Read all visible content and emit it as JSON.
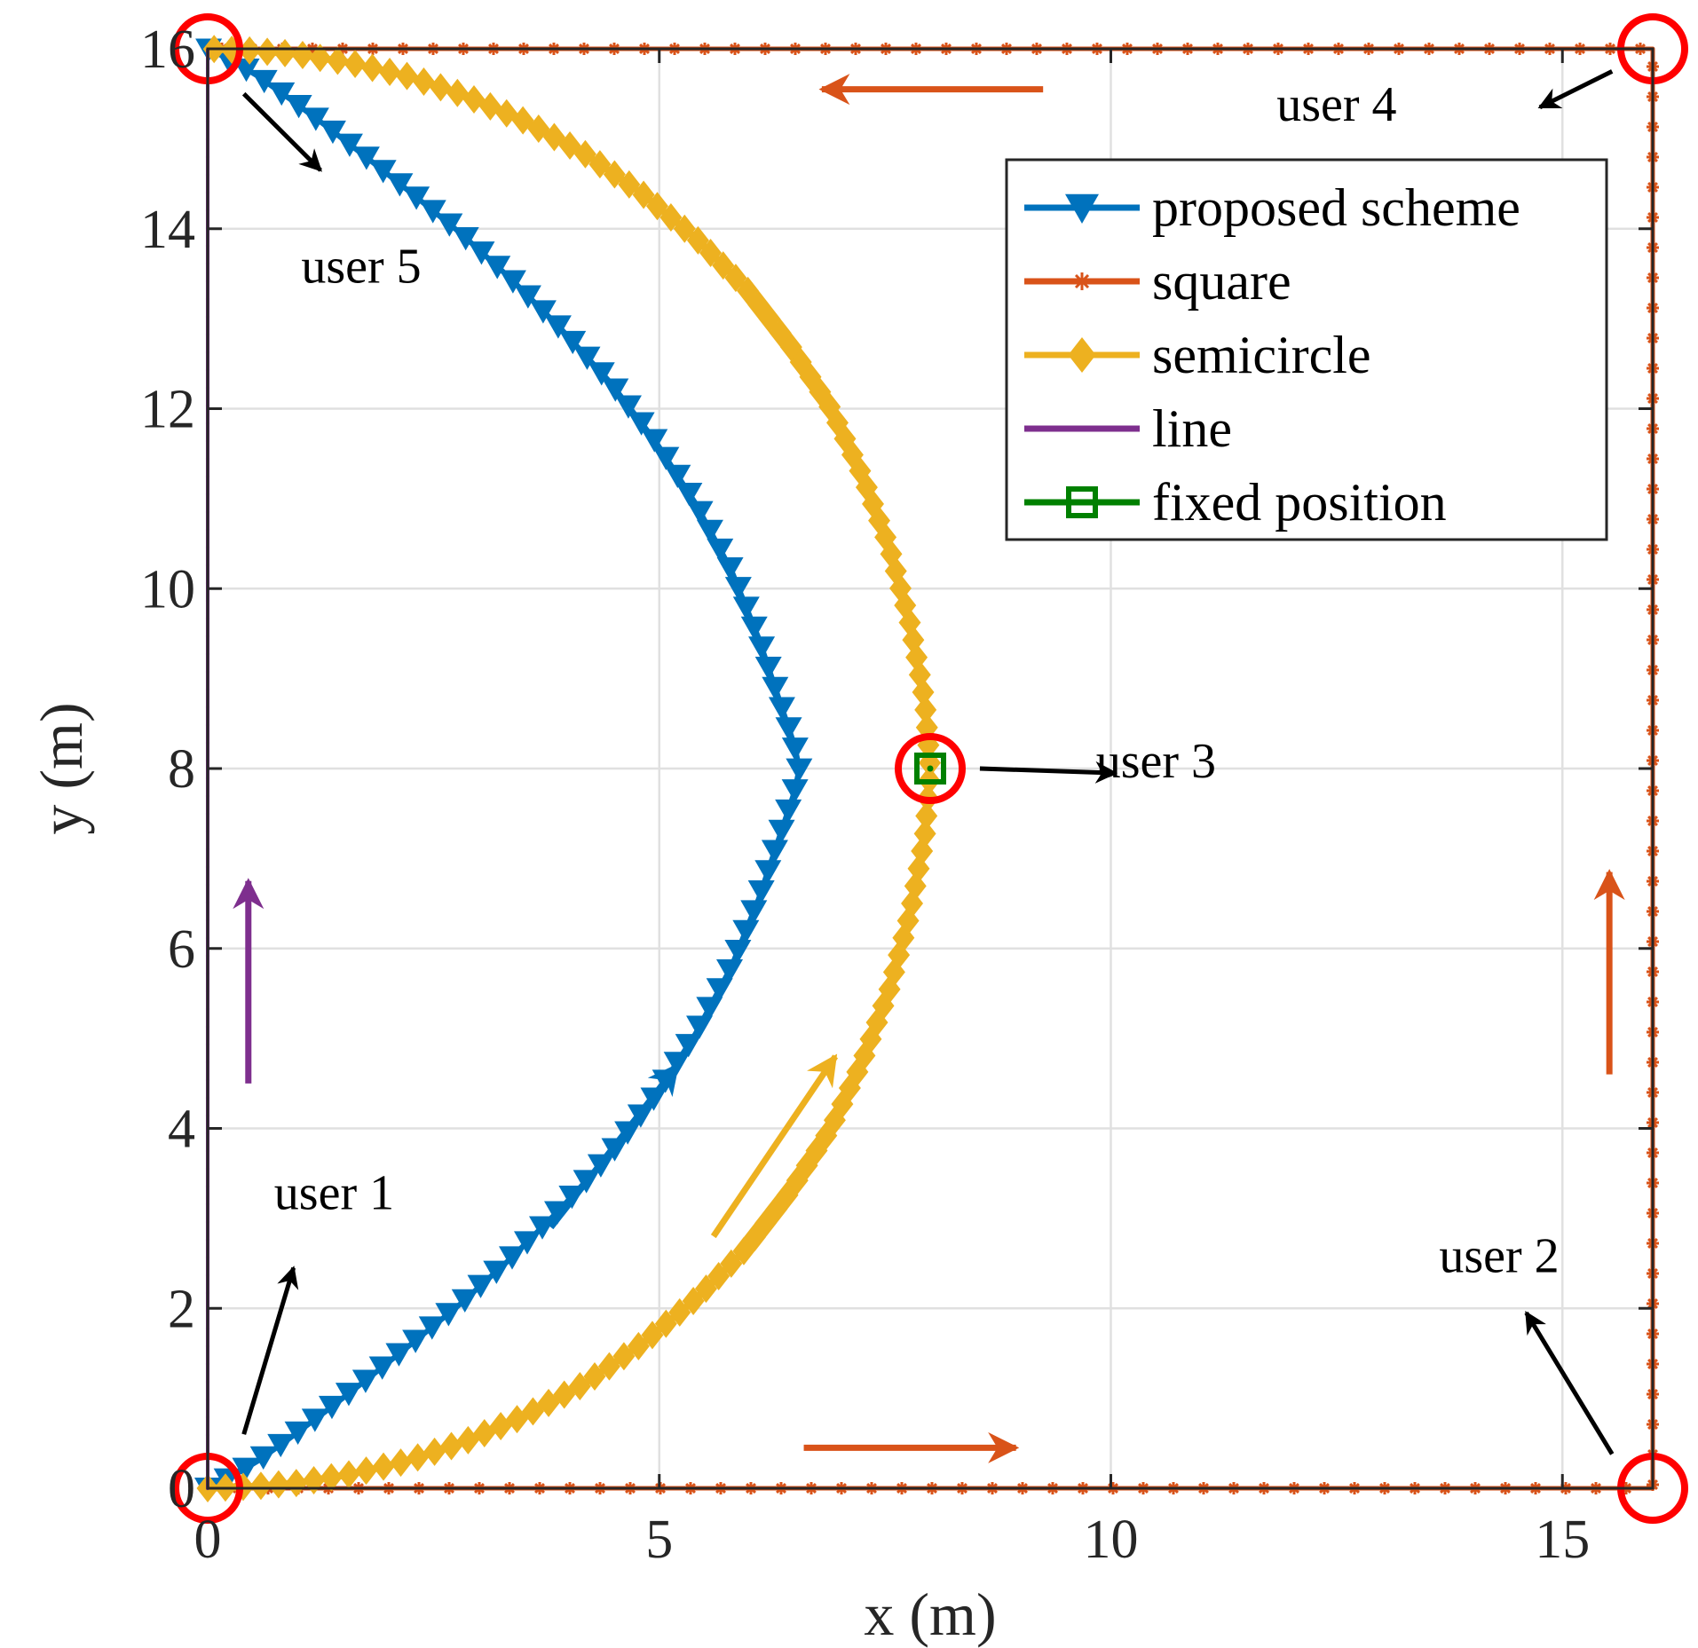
{
  "chart_data": {
    "type": "line",
    "title": "",
    "xlabel": "x (m)",
    "ylabel": "y (m)",
    "xlim": [
      0,
      16
    ],
    "ylim": [
      0,
      16
    ],
    "grid": true,
    "xticks": [
      "0",
      "5",
      "10",
      "15"
    ],
    "xtick_values": [
      0,
      5,
      10,
      15
    ],
    "yticks": [
      "0",
      "2",
      "4",
      "6",
      "8",
      "10",
      "12",
      "14",
      "16"
    ],
    "ytick_values": [
      0,
      2,
      4,
      6,
      8,
      10,
      12,
      14,
      16
    ],
    "legend_position": "top-right",
    "series": [
      {
        "name": "proposed scheme",
        "color": "#0072BD",
        "marker": "triangle-down",
        "x": [
          0,
          0.25,
          0.55,
          0.9,
          1.3,
          1.75,
          2.25,
          2.8,
          3.35,
          3.9,
          4.45,
          4.95,
          5.4,
          5.8,
          6.1,
          6.35,
          6.5,
          6.55,
          6.5,
          6.35,
          6.1,
          5.8,
          5.4,
          4.95,
          4.45,
          3.9,
          3.35,
          2.8,
          2.25,
          1.75,
          1.3,
          0.9,
          0.55,
          0.25,
          0
        ],
        "y": [
          0,
          0.12,
          0.3,
          0.55,
          0.85,
          1.2,
          1.6,
          2.05,
          2.55,
          3.1,
          3.7,
          4.35,
          5.05,
          5.8,
          6.55,
          7.3,
          7.75,
          8.0,
          8.25,
          8.7,
          9.45,
          10.2,
          10.95,
          11.65,
          12.3,
          12.9,
          13.45,
          13.95,
          14.4,
          14.8,
          15.15,
          15.45,
          15.7,
          15.88,
          16
        ]
      },
      {
        "name": "square",
        "color": "#D95319",
        "marker": "star",
        "x": [
          0,
          16,
          16,
          0
        ],
        "y": [
          0,
          0,
          16,
          16
        ]
      },
      {
        "name": "semicircle",
        "color": "#EDB120",
        "marker": "diamond",
        "x": [
          0,
          0.5,
          1.0,
          1.6,
          2.2,
          2.85,
          3.5,
          4.15,
          4.8,
          5.4,
          5.95,
          6.45,
          6.9,
          7.25,
          7.55,
          7.78,
          7.94,
          8.0,
          7.94,
          7.78,
          7.55,
          7.25,
          6.9,
          6.45,
          5.95,
          5.4,
          4.8,
          4.15,
          3.5,
          2.85,
          2.2,
          1.6,
          1.0,
          0.5,
          0
        ],
        "y": [
          0,
          0.02,
          0.06,
          0.16,
          0.3,
          0.52,
          0.8,
          1.15,
          1.6,
          2.1,
          2.65,
          3.3,
          4.0,
          4.75,
          5.55,
          6.4,
          7.25,
          8.0,
          8.75,
          9.6,
          10.45,
          11.25,
          12.0,
          12.7,
          13.35,
          13.9,
          14.4,
          14.85,
          15.2,
          15.48,
          15.7,
          15.84,
          15.94,
          15.98,
          16
        ]
      },
      {
        "name": "line",
        "color": "#7E2F8E",
        "marker": "dot",
        "x": [
          0,
          0
        ],
        "y": [
          0,
          16
        ]
      },
      {
        "name": "fixed position",
        "color": "#008000",
        "marker": "square",
        "x": [
          8
        ],
        "y": [
          8
        ]
      }
    ],
    "users": [
      {
        "label": "user 1",
        "x": 0,
        "y": 0,
        "text_x": 1.4,
        "text_y": 3.1,
        "arrow_from": [
          0.4,
          0.6
        ],
        "arrow_to": [
          0.95,
          2.45
        ]
      },
      {
        "label": "user 2",
        "x": 16,
        "y": 0,
        "text_x": 14.3,
        "text_y": 2.4,
        "arrow_from": [
          15.55,
          0.38
        ],
        "arrow_to": [
          14.6,
          1.95
        ]
      },
      {
        "label": "user 3",
        "x": 8,
        "y": 8,
        "text_x": 10.5,
        "text_y": 7.9,
        "arrow_from": [
          8.55,
          8.0
        ],
        "arrow_to": [
          10.05,
          7.95
        ]
      },
      {
        "label": "user 4",
        "x": 16,
        "y": 16,
        "text_x": 12.5,
        "text_y": 15.2,
        "arrow_from": [
          15.55,
          15.75
        ],
        "arrow_to": [
          14.75,
          15.35
        ]
      },
      {
        "label": "user 5",
        "x": 0,
        "y": 16,
        "text_x": 1.7,
        "text_y": 13.4,
        "arrow_from": [
          0.4,
          15.5
        ],
        "arrow_to": [
          1.25,
          14.65
        ]
      }
    ],
    "direction_arrows": [
      {
        "color": "#D95319",
        "from": [
          9.25,
          15.55
        ],
        "to": [
          6.8,
          15.55
        ]
      },
      {
        "color": "#D95319",
        "from": [
          6.6,
          0.45
        ],
        "to": [
          8.95,
          0.45
        ]
      },
      {
        "color": "#D95319",
        "from": [
          15.52,
          4.6
        ],
        "to": [
          15.52,
          6.85
        ]
      },
      {
        "color": "#7E2F8E",
        "from": [
          0.45,
          4.5
        ],
        "to": [
          0.45,
          6.75
        ]
      },
      {
        "color": "#0072BD",
        "from": [
          3.8,
          2.9
        ],
        "to": [
          5.2,
          4.7
        ]
      },
      {
        "color": "#EDB120",
        "from": [
          5.6,
          2.8
        ],
        "to": [
          6.95,
          4.8
        ]
      }
    ]
  }
}
